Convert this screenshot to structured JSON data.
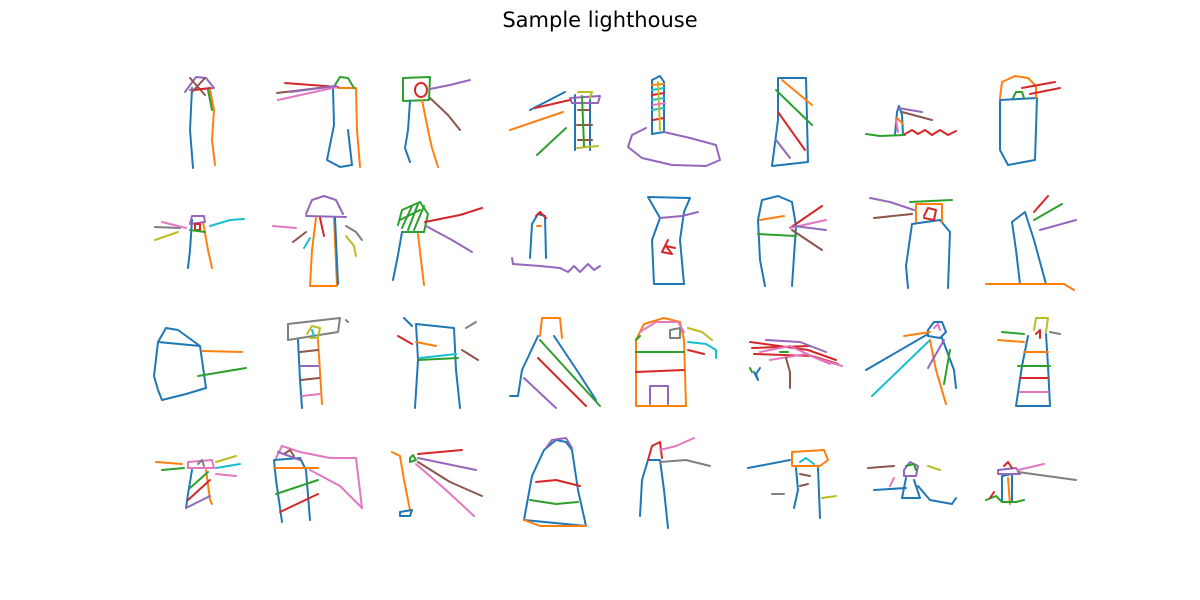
{
  "figure": {
    "title": "Sample lighthouse"
  },
  "palette": [
    "#1f77b4",
    "#ff7f0e",
    "#2ca02c",
    "#d62728",
    "#9467bd",
    "#8c564b",
    "#e377c2",
    "#7f7f7f",
    "#bcbd22",
    "#17becf"
  ],
  "grid": {
    "rows": 4,
    "cols": 8,
    "sample_count": 32
  }
}
